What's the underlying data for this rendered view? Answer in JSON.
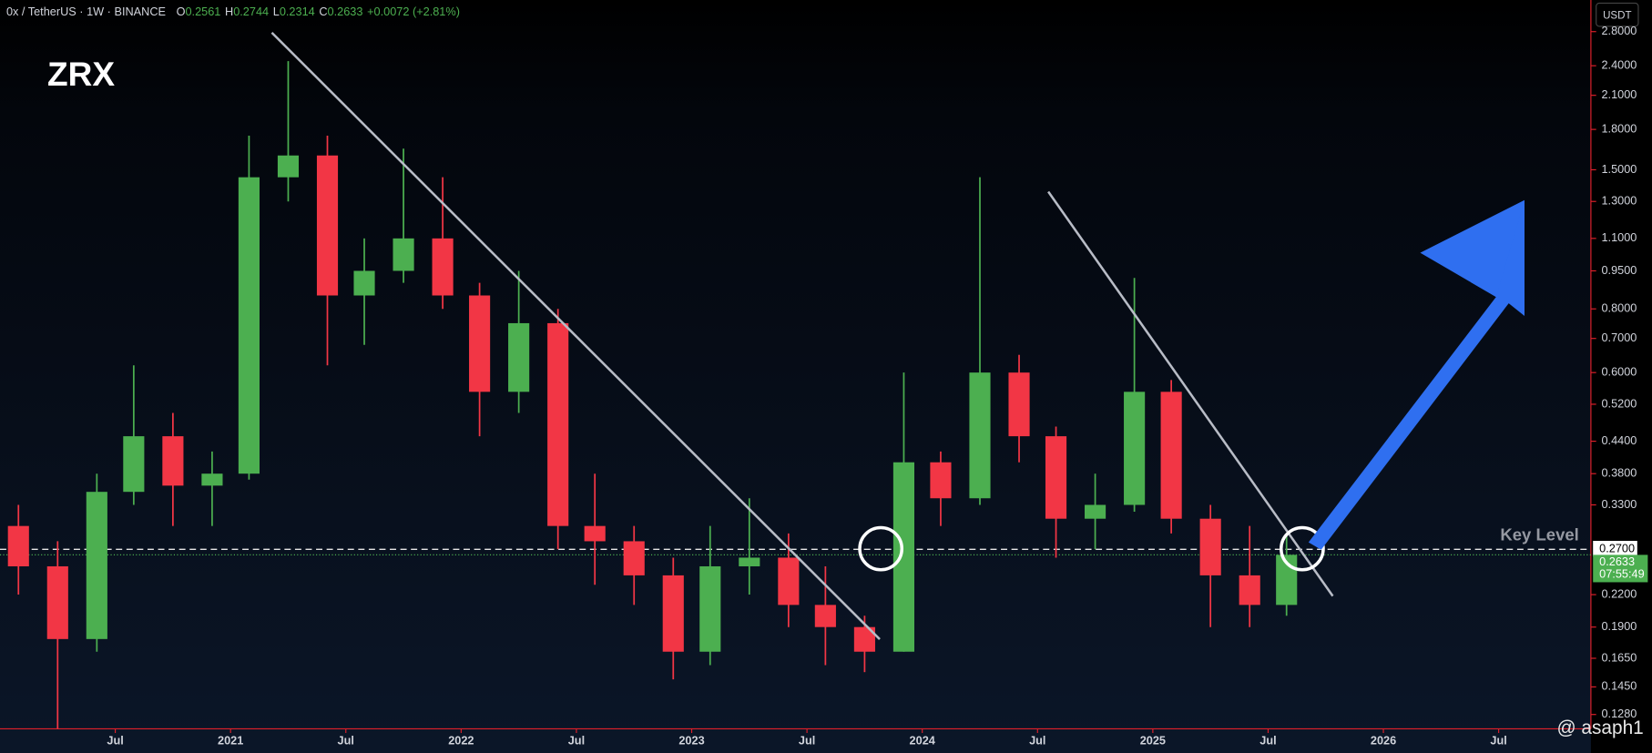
{
  "header": {
    "symbol": "0x / TetherUS · 1W · BINANCE",
    "ohlc": [
      {
        "key": "O",
        "value": 0.2561
      },
      {
        "key": "H",
        "value": 0.2744
      },
      {
        "key": "L",
        "value": 0.2314
      },
      {
        "key": "C",
        "value": 0.2633
      }
    ],
    "change": "+0.0072 (+2.81%)"
  },
  "chart_data": {
    "type": "candlestick",
    "title": "ZRX",
    "currency": "USDT",
    "log_scale": true,
    "up_color": "#4caf50",
    "down_color": "#f23645",
    "x": [
      2020.08,
      2020.25,
      2020.42,
      2020.58,
      2020.75,
      2020.92,
      2021.08,
      2021.25,
      2021.42,
      2021.58,
      2021.75,
      2021.92,
      2022.08,
      2022.25,
      2022.42,
      2022.58,
      2022.75,
      2022.92,
      2023.08,
      2023.25,
      2023.42,
      2023.58,
      2023.75,
      2023.92,
      2024.08,
      2024.25,
      2024.42,
      2024.58,
      2024.75,
      2024.92,
      2025.08,
      2025.25,
      2025.42,
      2025.58
    ],
    "open": [
      0.3,
      0.25,
      0.18,
      0.35,
      0.45,
      0.36,
      0.38,
      1.45,
      1.6,
      0.85,
      0.95,
      1.1,
      0.85,
      0.55,
      0.75,
      0.3,
      0.28,
      0.24,
      0.17,
      0.25,
      0.26,
      0.21,
      0.19,
      0.17,
      0.4,
      0.34,
      0.6,
      0.45,
      0.31,
      0.33,
      0.55,
      0.31,
      0.24,
      0.21
    ],
    "high": [
      0.33,
      0.28,
      0.38,
      0.62,
      0.5,
      0.42,
      1.75,
      2.45,
      1.75,
      1.1,
      1.65,
      1.45,
      0.9,
      0.95,
      0.8,
      0.38,
      0.3,
      0.26,
      0.3,
      0.34,
      0.29,
      0.25,
      0.2,
      0.6,
      0.42,
      1.45,
      0.65,
      0.47,
      0.38,
      0.92,
      0.58,
      0.33,
      0.3,
      0.29
    ],
    "low": [
      0.22,
      0.12,
      0.17,
      0.33,
      0.3,
      0.3,
      0.37,
      1.3,
      0.62,
      0.68,
      0.9,
      0.8,
      0.45,
      0.5,
      0.27,
      0.23,
      0.21,
      0.15,
      0.16,
      0.22,
      0.19,
      0.16,
      0.155,
      0.17,
      0.3,
      0.33,
      0.4,
      0.26,
      0.27,
      0.32,
      0.29,
      0.19,
      0.19,
      0.2
    ],
    "close": [
      0.25,
      0.18,
      0.35,
      0.45,
      0.36,
      0.38,
      1.45,
      1.6,
      0.85,
      0.95,
      1.1,
      0.85,
      0.55,
      0.75,
      0.3,
      0.28,
      0.24,
      0.17,
      0.25,
      0.26,
      0.21,
      0.19,
      0.17,
      0.4,
      0.34,
      0.6,
      0.45,
      0.31,
      0.33,
      0.55,
      0.31,
      0.24,
      0.21,
      0.2633
    ],
    "xlim": [
      2020.0,
      2026.9
    ],
    "xticks": [
      {
        "value": 2020.5,
        "label": "Jul"
      },
      2021,
      {
        "value": 2021.5,
        "label": "Jul"
      },
      2022,
      {
        "value": 2022.5,
        "label": "Jul"
      },
      2023,
      {
        "value": 2023.5,
        "label": "Jul"
      },
      2024,
      {
        "value": 2024.5,
        "label": "Jul"
      },
      2025,
      {
        "value": 2025.5,
        "label": "Jul"
      },
      2026,
      {
        "value": 2026.5,
        "label": "Jul"
      }
    ],
    "ylim": [
      0.12,
      3.23
    ],
    "yticks": [
      {
        "value": 2.8,
        "label": "2.8000"
      },
      {
        "value": 2.4,
        "label": "2.4000"
      },
      {
        "value": 2.1,
        "label": "2.1000"
      },
      {
        "value": 1.8,
        "label": "1.8000"
      },
      {
        "value": 1.5,
        "label": "1.5000"
      },
      {
        "value": 1.3,
        "label": "1.3000"
      },
      {
        "value": 1.1,
        "label": "1.1000"
      },
      {
        "value": 0.95,
        "label": "0.9500"
      },
      {
        "value": 0.8,
        "label": "0.8000"
      },
      {
        "value": 0.7,
        "label": "0.7000"
      },
      {
        "value": 0.6,
        "label": "0.6000"
      },
      {
        "value": 0.52,
        "label": "0.5200"
      },
      {
        "value": 0.44,
        "label": "0.4400"
      },
      {
        "value": 0.38,
        "label": "0.3800"
      },
      {
        "value": 0.33,
        "label": "0.3300"
      },
      {
        "value": 0.22,
        "label": "0.2200"
      },
      {
        "value": 0.19,
        "label": "0.1900"
      },
      {
        "value": 0.165,
        "label": "0.1650"
      },
      {
        "value": 0.145,
        "label": "0.1450"
      },
      {
        "value": 0.128,
        "label": "0.1280"
      }
    ],
    "key_level": {
      "text": "Key Level",
      "value": 0.27,
      "label": "0.2700"
    },
    "last_price": {
      "value": 0.2633,
      "label": "0.2633",
      "countdown": "07:55:49"
    }
  },
  "watermark": "@ asaph1"
}
